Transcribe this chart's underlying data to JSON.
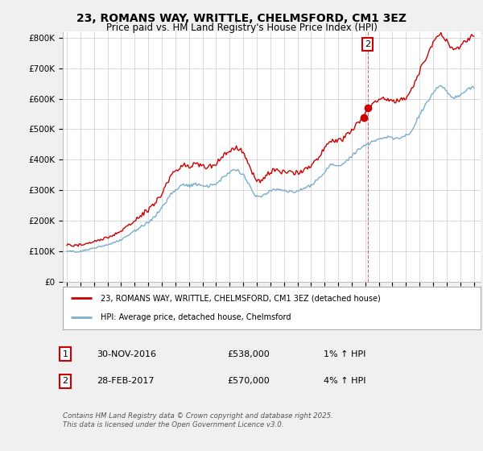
{
  "title": "23, ROMANS WAY, WRITTLE, CHELMSFORD, CM1 3EZ",
  "subtitle": "Price paid vs. HM Land Registry's House Price Index (HPI)",
  "legend_line1": "23, ROMANS WAY, WRITTLE, CHELMSFORD, CM1 3EZ (detached house)",
  "legend_line2": "HPI: Average price, detached house, Chelmsford",
  "footer": "Contains HM Land Registry data © Crown copyright and database right 2025.\nThis data is licensed under the Open Government Licence v3.0.",
  "annotation1_label": "1",
  "annotation1_date": "30-NOV-2016",
  "annotation1_price": "£538,000",
  "annotation1_hpi": "1% ↑ HPI",
  "annotation2_label": "2",
  "annotation2_date": "28-FEB-2017",
  "annotation2_price": "£570,000",
  "annotation2_hpi": "4% ↑ HPI",
  "ylim": [
    0,
    820000
  ],
  "yticks": [
    0,
    100000,
    200000,
    300000,
    400000,
    500000,
    600000,
    700000,
    800000
  ],
  "ytick_labels": [
    "£0",
    "£100K",
    "£200K",
    "£300K",
    "£400K",
    "£500K",
    "£600K",
    "£700K",
    "£800K"
  ],
  "background_color": "#f0f0f0",
  "plot_bg_color": "#ffffff",
  "red_color": "#cc0000",
  "blue_color": "#7aadce",
  "sale1_x": 2016.92,
  "sale1_y": 538000,
  "sale2_x": 2017.17,
  "sale2_y": 570000,
  "xticks": [
    1995,
    1996,
    1997,
    1998,
    1999,
    2000,
    2001,
    2002,
    2003,
    2004,
    2005,
    2006,
    2007,
    2008,
    2009,
    2010,
    2011,
    2012,
    2013,
    2014,
    2015,
    2016,
    2017,
    2018,
    2019,
    2020,
    2021,
    2022,
    2023,
    2024,
    2025
  ],
  "xlim": [
    1994.7,
    2025.5
  ],
  "hpi_base": [
    [
      1995,
      100000
    ],
    [
      1995.083,
      100200
    ],
    [
      1995.167,
      100500
    ],
    [
      1995.25,
      100300
    ],
    [
      1995.333,
      99800
    ],
    [
      1995.417,
      99500
    ],
    [
      1995.5,
      99200
    ],
    [
      1995.583,
      99000
    ],
    [
      1995.667,
      99300
    ],
    [
      1995.75,
      99600
    ],
    [
      1995.833,
      100000
    ],
    [
      1995.917,
      100400
    ],
    [
      1996,
      100800
    ],
    [
      1996.083,
      101500
    ],
    [
      1996.167,
      102200
    ],
    [
      1996.25,
      103000
    ],
    [
      1996.333,
      103800
    ],
    [
      1996.417,
      104500
    ],
    [
      1996.5,
      105200
    ],
    [
      1996.583,
      106000
    ],
    [
      1996.667,
      106800
    ],
    [
      1996.75,
      107500
    ],
    [
      1996.833,
      108200
    ],
    [
      1996.917,
      109000
    ],
    [
      1997,
      110000
    ],
    [
      1997.083,
      111000
    ],
    [
      1997.167,
      112000
    ],
    [
      1997.25,
      113200
    ],
    [
      1997.333,
      114000
    ],
    [
      1997.417,
      114800
    ],
    [
      1997.5,
      115500
    ],
    [
      1997.583,
      116200
    ],
    [
      1997.667,
      117000
    ],
    [
      1997.75,
      117800
    ],
    [
      1997.833,
      118600
    ],
    [
      1997.917,
      119500
    ],
    [
      1998,
      120500
    ],
    [
      1998.083,
      121800
    ],
    [
      1998.167,
      123200
    ],
    [
      1998.25,
      124800
    ],
    [
      1998.333,
      126000
    ],
    [
      1998.417,
      127500
    ],
    [
      1998.5,
      129000
    ],
    [
      1998.583,
      130500
    ],
    [
      1998.667,
      132000
    ],
    [
      1998.75,
      133500
    ],
    [
      1998.833,
      135000
    ],
    [
      1998.917,
      136500
    ],
    [
      1999,
      138000
    ],
    [
      1999.083,
      140000
    ],
    [
      1999.167,
      142000
    ],
    [
      1999.25,
      144500
    ],
    [
      1999.333,
      147000
    ],
    [
      1999.417,
      149500
    ],
    [
      1999.5,
      152000
    ],
    [
      1999.583,
      154500
    ],
    [
      1999.667,
      157000
    ],
    [
      1999.75,
      159500
    ],
    [
      1999.833,
      162000
    ],
    [
      1999.917,
      164500
    ],
    [
      2000,
      167000
    ],
    [
      2000.083,
      169500
    ],
    [
      2000.167,
      172000
    ],
    [
      2000.25,
      174500
    ],
    [
      2000.333,
      177000
    ],
    [
      2000.417,
      179500
    ],
    [
      2000.5,
      182000
    ],
    [
      2000.583,
      184500
    ],
    [
      2000.667,
      187000
    ],
    [
      2000.75,
      189500
    ],
    [
      2000.833,
      191800
    ],
    [
      2000.917,
      194000
    ],
    [
      2001,
      196000
    ],
    [
      2001.083,
      199000
    ],
    [
      2001.167,
      202000
    ],
    [
      2001.25,
      205000
    ],
    [
      2001.333,
      208000
    ],
    [
      2001.417,
      212000
    ],
    [
      2001.5,
      216000
    ],
    [
      2001.583,
      220000
    ],
    [
      2001.667,
      224000
    ],
    [
      2001.75,
      228000
    ],
    [
      2001.833,
      232000
    ],
    [
      2001.917,
      236000
    ],
    [
      2002,
      240000
    ],
    [
      2002.083,
      246000
    ],
    [
      2002.167,
      252000
    ],
    [
      2002.25,
      258000
    ],
    [
      2002.333,
      264000
    ],
    [
      2002.417,
      270000
    ],
    [
      2002.5,
      276000
    ],
    [
      2002.583,
      282000
    ],
    [
      2002.667,
      287000
    ],
    [
      2002.75,
      292000
    ],
    [
      2002.833,
      296000
    ],
    [
      2002.917,
      299000
    ],
    [
      2003,
      302000
    ],
    [
      2003.083,
      305000
    ],
    [
      2003.167,
      308000
    ],
    [
      2003.25,
      311000
    ],
    [
      2003.333,
      313000
    ],
    [
      2003.417,
      315000
    ],
    [
      2003.5,
      316000
    ],
    [
      2003.583,
      317000
    ],
    [
      2003.667,
      317500
    ],
    [
      2003.75,
      317000
    ],
    [
      2003.833,
      316000
    ],
    [
      2003.917,
      315000
    ],
    [
      2004,
      314000
    ],
    [
      2004.083,
      315000
    ],
    [
      2004.167,
      316000
    ],
    [
      2004.25,
      317500
    ],
    [
      2004.333,
      318500
    ],
    [
      2004.417,
      319000
    ],
    [
      2004.5,
      319500
    ],
    [
      2004.583,
      319000
    ],
    [
      2004.667,
      318000
    ],
    [
      2004.75,
      317000
    ],
    [
      2004.833,
      316000
    ],
    [
      2004.917,
      315000
    ],
    [
      2005,
      314000
    ],
    [
      2005.083,
      313000
    ],
    [
      2005.167,
      312500
    ],
    [
      2005.25,
      312500
    ],
    [
      2005.333,
      313000
    ],
    [
      2005.417,
      313500
    ],
    [
      2005.5,
      314000
    ],
    [
      2005.583,
      315000
    ],
    [
      2005.667,
      316000
    ],
    [
      2005.75,
      317500
    ],
    [
      2005.833,
      319000
    ],
    [
      2005.917,
      320500
    ],
    [
      2006,
      322000
    ],
    [
      2006.083,
      325000
    ],
    [
      2006.167,
      328000
    ],
    [
      2006.25,
      331000
    ],
    [
      2006.333,
      334000
    ],
    [
      2006.417,
      337000
    ],
    [
      2006.5,
      340000
    ],
    [
      2006.583,
      343000
    ],
    [
      2006.667,
      346000
    ],
    [
      2006.75,
      349000
    ],
    [
      2006.833,
      352000
    ],
    [
      2006.917,
      355000
    ],
    [
      2007,
      358000
    ],
    [
      2007.083,
      360000
    ],
    [
      2007.167,
      362000
    ],
    [
      2007.25,
      363500
    ],
    [
      2007.333,
      364500
    ],
    [
      2007.417,
      365000
    ],
    [
      2007.5,
      364500
    ],
    [
      2007.583,
      363500
    ],
    [
      2007.667,
      362000
    ],
    [
      2007.75,
      360000
    ],
    [
      2007.833,
      357000
    ],
    [
      2007.917,
      354000
    ],
    [
      2008,
      350000
    ],
    [
      2008.083,
      345000
    ],
    [
      2008.167,
      339000
    ],
    [
      2008.25,
      332000
    ],
    [
      2008.333,
      325000
    ],
    [
      2008.417,
      318000
    ],
    [
      2008.5,
      311000
    ],
    [
      2008.583,
      304000
    ],
    [
      2008.667,
      298000
    ],
    [
      2008.75,
      292000
    ],
    [
      2008.833,
      287000
    ],
    [
      2008.917,
      283000
    ],
    [
      2009,
      279000
    ],
    [
      2009.083,
      277000
    ],
    [
      2009.167,
      276000
    ],
    [
      2009.25,
      276000
    ],
    [
      2009.333,
      277000
    ],
    [
      2009.417,
      279000
    ],
    [
      2009.5,
      282000
    ],
    [
      2009.583,
      285000
    ],
    [
      2009.667,
      288000
    ],
    [
      2009.75,
      291000
    ],
    [
      2009.833,
      294000
    ],
    [
      2009.917,
      296000
    ],
    [
      2010,
      298000
    ],
    [
      2010.083,
      300000
    ],
    [
      2010.167,
      302000
    ],
    [
      2010.25,
      303000
    ],
    [
      2010.333,
      303500
    ],
    [
      2010.417,
      303500
    ],
    [
      2010.5,
      303000
    ],
    [
      2010.583,
      302000
    ],
    [
      2010.667,
      301000
    ],
    [
      2010.75,
      300000
    ],
    [
      2010.833,
      299000
    ],
    [
      2010.917,
      298500
    ],
    [
      2011,
      298000
    ],
    [
      2011.083,
      298000
    ],
    [
      2011.167,
      298000
    ],
    [
      2011.25,
      298000
    ],
    [
      2011.333,
      297500
    ],
    [
      2011.417,
      297000
    ],
    [
      2011.5,
      296500
    ],
    [
      2011.583,
      296000
    ],
    [
      2011.667,
      296000
    ],
    [
      2011.75,
      296500
    ],
    [
      2011.833,
      297000
    ],
    [
      2011.917,
      297500
    ],
    [
      2012,
      298000
    ],
    [
      2012.083,
      299000
    ],
    [
      2012.167,
      300000
    ],
    [
      2012.25,
      301500
    ],
    [
      2012.333,
      303000
    ],
    [
      2012.417,
      304500
    ],
    [
      2012.5,
      306000
    ],
    [
      2012.583,
      307500
    ],
    [
      2012.667,
      309000
    ],
    [
      2012.75,
      310500
    ],
    [
      2012.833,
      312000
    ],
    [
      2012.917,
      313500
    ],
    [
      2013,
      315000
    ],
    [
      2013.083,
      318000
    ],
    [
      2013.167,
      321500
    ],
    [
      2013.25,
      325000
    ],
    [
      2013.333,
      329000
    ],
    [
      2013.417,
      333000
    ],
    [
      2013.5,
      337000
    ],
    [
      2013.583,
      341000
    ],
    [
      2013.667,
      345000
    ],
    [
      2013.75,
      349000
    ],
    [
      2013.833,
      353000
    ],
    [
      2013.917,
      357000
    ],
    [
      2014,
      361000
    ],
    [
      2014.083,
      366000
    ],
    [
      2014.167,
      371000
    ],
    [
      2014.25,
      375000
    ],
    [
      2014.333,
      379000
    ],
    [
      2014.417,
      382000
    ],
    [
      2014.5,
      384000
    ],
    [
      2014.583,
      385000
    ],
    [
      2014.667,
      385500
    ],
    [
      2014.75,
      385500
    ],
    [
      2014.833,
      385000
    ],
    [
      2014.917,
      384000
    ],
    [
      2015,
      383000
    ],
    [
      2015.083,
      383500
    ],
    [
      2015.167,
      384500
    ],
    [
      2015.25,
      386000
    ],
    [
      2015.333,
      388000
    ],
    [
      2015.417,
      390500
    ],
    [
      2015.5,
      393000
    ],
    [
      2015.583,
      396000
    ],
    [
      2015.667,
      399000
    ],
    [
      2015.75,
      402000
    ],
    [
      2015.833,
      405000
    ],
    [
      2015.917,
      408000
    ],
    [
      2016,
      411000
    ],
    [
      2016.083,
      415000
    ],
    [
      2016.167,
      419000
    ],
    [
      2016.25,
      423000
    ],
    [
      2016.333,
      427000
    ],
    [
      2016.417,
      431000
    ],
    [
      2016.5,
      434000
    ],
    [
      2016.583,
      437000
    ],
    [
      2016.667,
      440000
    ],
    [
      2016.75,
      442500
    ],
    [
      2016.833,
      444500
    ],
    [
      2016.917,
      446500
    ],
    [
      2017,
      448000
    ],
    [
      2017.083,
      449500
    ],
    [
      2017.167,
      451000
    ],
    [
      2017.25,
      452500
    ],
    [
      2017.333,
      454000
    ],
    [
      2017.417,
      456000
    ],
    [
      2017.5,
      458000
    ],
    [
      2017.583,
      460000
    ],
    [
      2017.667,
      462000
    ],
    [
      2017.75,
      464000
    ],
    [
      2017.833,
      466000
    ],
    [
      2017.917,
      468000
    ],
    [
      2018,
      470000
    ],
    [
      2018.083,
      471000
    ],
    [
      2018.167,
      472000
    ],
    [
      2018.25,
      473000
    ],
    [
      2018.333,
      474000
    ],
    [
      2018.417,
      474500
    ],
    [
      2018.5,
      475000
    ],
    [
      2018.583,
      475000
    ],
    [
      2018.667,
      474500
    ],
    [
      2018.75,
      474000
    ],
    [
      2018.833,
      473000
    ],
    [
      2018.917,
      472000
    ],
    [
      2019,
      471000
    ],
    [
      2019.083,
      470500
    ],
    [
      2019.167,
      470000
    ],
    [
      2019.25,
      470000
    ],
    [
      2019.333,
      470500
    ],
    [
      2019.417,
      471000
    ],
    [
      2019.5,
      472000
    ],
    [
      2019.583,
      473000
    ],
    [
      2019.667,
      474000
    ],
    [
      2019.75,
      475000
    ],
    [
      2019.833,
      476000
    ],
    [
      2019.917,
      477500
    ],
    [
      2020,
      479000
    ],
    [
      2020.083,
      481000
    ],
    [
      2020.167,
      484000
    ],
    [
      2020.25,
      487500
    ],
    [
      2020.333,
      492000
    ],
    [
      2020.417,
      497000
    ],
    [
      2020.5,
      503000
    ],
    [
      2020.583,
      510000
    ],
    [
      2020.667,
      518000
    ],
    [
      2020.75,
      526000
    ],
    [
      2020.833,
      534000
    ],
    [
      2020.917,
      541000
    ],
    [
      2021,
      547000
    ],
    [
      2021.083,
      553000
    ],
    [
      2021.167,
      559000
    ],
    [
      2021.25,
      565000
    ],
    [
      2021.333,
      571000
    ],
    [
      2021.417,
      577000
    ],
    [
      2021.5,
      583000
    ],
    [
      2021.583,
      589000
    ],
    [
      2021.667,
      595000
    ],
    [
      2021.75,
      601000
    ],
    [
      2021.833,
      607000
    ],
    [
      2021.917,
      612000
    ],
    [
      2022,
      617000
    ],
    [
      2022.083,
      623000
    ],
    [
      2022.167,
      629000
    ],
    [
      2022.25,
      634000
    ],
    [
      2022.333,
      638000
    ],
    [
      2022.417,
      641000
    ],
    [
      2022.5,
      643000
    ],
    [
      2022.583,
      643000
    ],
    [
      2022.667,
      642000
    ],
    [
      2022.75,
      639000
    ],
    [
      2022.833,
      635000
    ],
    [
      2022.917,
      630000
    ],
    [
      2023,
      625000
    ],
    [
      2023.083,
      620000
    ],
    [
      2023.167,
      616000
    ],
    [
      2023.25,
      612000
    ],
    [
      2023.333,
      609000
    ],
    [
      2023.417,
      607000
    ],
    [
      2023.5,
      606000
    ],
    [
      2023.583,
      605000
    ],
    [
      2023.667,
      605000
    ],
    [
      2023.75,
      606000
    ],
    [
      2023.833,
      607000
    ],
    [
      2023.917,
      609000
    ],
    [
      2024,
      611000
    ],
    [
      2024.083,
      614000
    ],
    [
      2024.167,
      617000
    ],
    [
      2024.25,
      620000
    ],
    [
      2024.333,
      623000
    ],
    [
      2024.417,
      626000
    ],
    [
      2024.5,
      628000
    ],
    [
      2024.583,
      630000
    ],
    [
      2024.667,
      632000
    ],
    [
      2024.75,
      634000
    ],
    [
      2024.833,
      636000
    ],
    [
      2024.917,
      637000
    ],
    [
      2025,
      638000
    ]
  ]
}
